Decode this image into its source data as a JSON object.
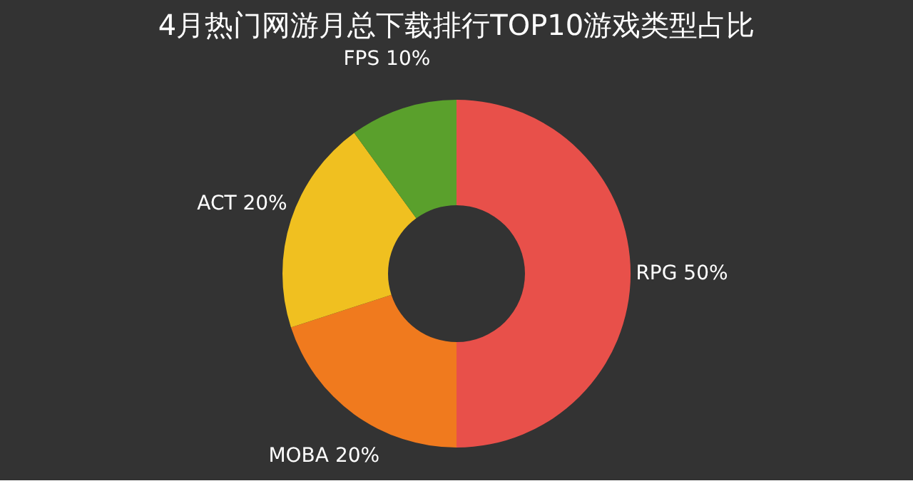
{
  "chart_data": {
    "type": "donut",
    "title": "4月热门网游月总下载排行TOP10游戏类型占比",
    "categories": [
      "RPG",
      "MOBA",
      "ACT",
      "FPS"
    ],
    "values": [
      50,
      20,
      20,
      10
    ],
    "value_labels": [
      "50%",
      "20%",
      "20%",
      "10%"
    ],
    "colors": [
      "#e8504a",
      "#f07a1e",
      "#f0c020",
      "#5aa02c"
    ],
    "legend": false
  }
}
